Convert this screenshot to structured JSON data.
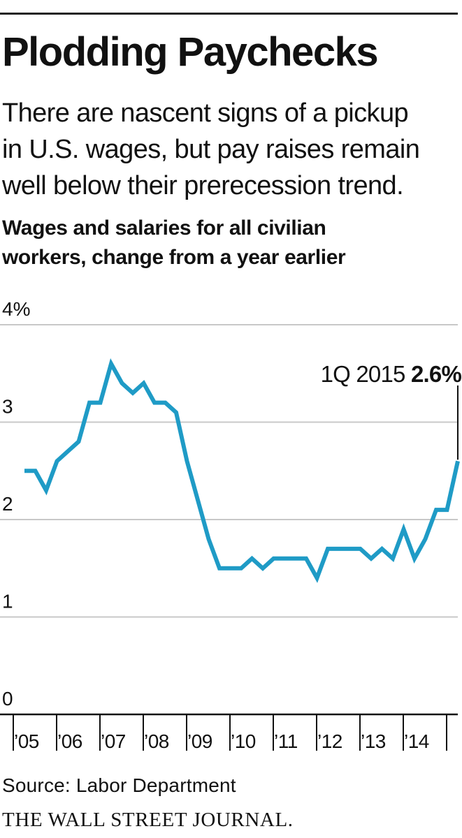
{
  "title": "Plodding Paychecks",
  "subtitle_lines": [
    "There are nascent signs of a pickup",
    "in U.S. wages, but pay raises remain",
    "well below their prerecession trend."
  ],
  "chart_heading_lines": [
    "Wages and salaries for all civilian",
    "workers, change from a year earlier"
  ],
  "source": "Source: Labor Department",
  "publisher": "THE WALL STREET JOURNAL.",
  "colors": {
    "line": "#1f9bc6",
    "grid": "#c8c8c8",
    "axis": "#111111",
    "text": "#111111"
  },
  "chart_data": {
    "type": "line",
    "y_tick_labels": [
      "0",
      "1",
      "2",
      "3",
      "4%"
    ],
    "y_ticks": [
      0,
      1,
      2,
      3,
      4
    ],
    "ylim": [
      0,
      4
    ],
    "x_tick_labels": [
      "’05",
      "’06",
      "’07",
      "’08",
      "’09",
      "’10",
      "’11",
      "’12",
      "’13",
      "’14"
    ],
    "grid": true,
    "annotation": {
      "period": "1Q 2015",
      "value_label": "2.6%",
      "value": 2.6
    },
    "series": [
      {
        "x": [
          "1Q 2005",
          "2Q 2005",
          "3Q 2005",
          "4Q 2005",
          "1Q 2006",
          "2Q 2006",
          "3Q 2006",
          "4Q 2006",
          "1Q 2007",
          "2Q 2007",
          "3Q 2007",
          "4Q 2007",
          "1Q 2008",
          "2Q 2008",
          "3Q 2008",
          "4Q 2008",
          "1Q 2009",
          "2Q 2009",
          "3Q 2009",
          "4Q 2009",
          "1Q 2010",
          "2Q 2010",
          "3Q 2010",
          "4Q 2010",
          "1Q 2011",
          "2Q 2011",
          "3Q 2011",
          "4Q 2011",
          "1Q 2012",
          "2Q 2012",
          "3Q 2012",
          "4Q 2012",
          "1Q 2013",
          "2Q 2013",
          "3Q 2013",
          "4Q 2013",
          "1Q 2014",
          "2Q 2014",
          "3Q 2014",
          "4Q 2014",
          "1Q 2015"
        ],
        "values": [
          2.5,
          2.5,
          2.3,
          2.6,
          2.7,
          2.8,
          3.2,
          3.2,
          3.6,
          3.4,
          3.3,
          3.4,
          3.2,
          3.2,
          3.1,
          2.6,
          2.2,
          1.8,
          1.5,
          1.5,
          1.5,
          1.6,
          1.5,
          1.6,
          1.6,
          1.6,
          1.6,
          1.4,
          1.7,
          1.7,
          1.7,
          1.7,
          1.6,
          1.7,
          1.6,
          1.9,
          1.6,
          1.8,
          2.1,
          2.1,
          2.6
        ]
      }
    ]
  }
}
